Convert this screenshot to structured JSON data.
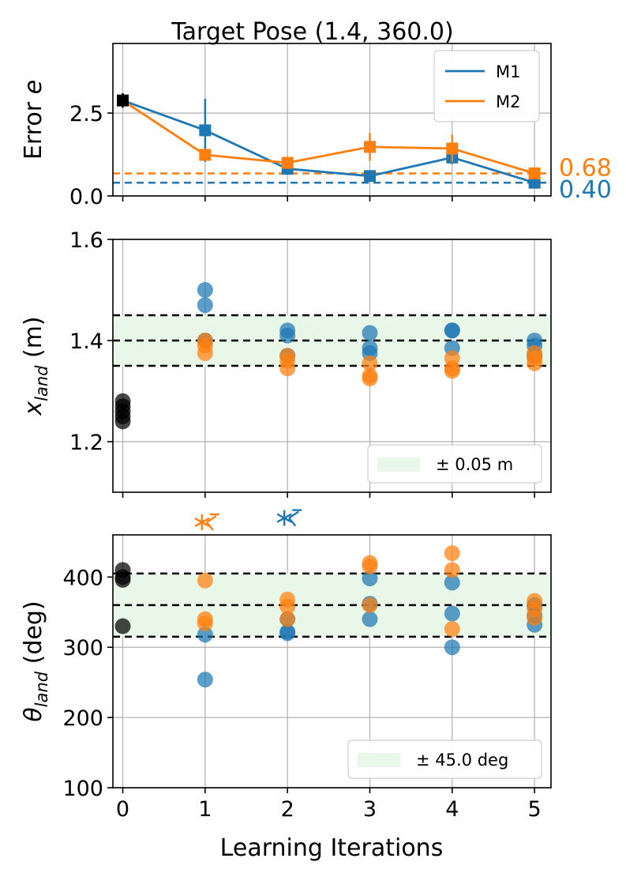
{
  "colors": {
    "m1": "#1f77b4",
    "m2": "#ff7f0e",
    "init": "#000000",
    "band": "#e9f7e9"
  },
  "chart_data": {
    "type": "composite",
    "title": "Target Pose (1.4, 360.0)",
    "xlabel": "Learning Iterations",
    "x_ticks": [
      "0",
      "1",
      "2",
      "3",
      "4",
      "5"
    ],
    "x_range": [
      -0.12,
      5.2
    ],
    "panels": [
      {
        "id": "error",
        "type": "line",
        "ylabel": "Error e",
        "ylim": [
          0,
          4.6
        ],
        "y_ticks": [
          "0.0",
          "2.5"
        ],
        "y_tick_values": [
          0.0,
          2.5
        ],
        "legend_position": "upper right",
        "initial": {
          "x": 0,
          "y": 2.88,
          "err": 0.22
        },
        "series": [
          {
            "name": "M1",
            "color": "#1f77b4",
            "x": [
              0,
              1,
              2,
              3,
              4,
              5
            ],
            "y": [
              2.88,
              1.98,
              0.82,
              0.6,
              1.16,
              0.4
            ],
            "err": [
              0.2,
              0.95,
              0.18,
              0.12,
              0.2,
              0.04
            ],
            "ref": 0.4,
            "ref_label": "0.40"
          },
          {
            "name": "M2",
            "color": "#ff7f0e",
            "x": [
              0,
              1,
              2,
              3,
              4,
              5
            ],
            "y": [
              2.88,
              1.24,
              1.0,
              1.48,
              1.43,
              0.68
            ],
            "err": [
              0.2,
              0.18,
              0.15,
              0.42,
              0.42,
              0.05
            ],
            "ref": 0.68,
            "ref_label": "0.68"
          }
        ]
      },
      {
        "id": "xland",
        "type": "scatter",
        "ylabel": "x_land (m)",
        "ylim": [
          1.1,
          1.6
        ],
        "y_ticks": [
          "1.2",
          "1.4",
          "1.6"
        ],
        "y_tick_values": [
          1.2,
          1.4,
          1.6
        ],
        "target": 1.4,
        "tolerance": 0.05,
        "legend": "± 0.05 m",
        "initial": [
          1.28,
          1.27,
          1.26,
          1.25,
          1.24
        ],
        "M1": [
          [
            1,
            1.5
          ],
          [
            1,
            1.47
          ],
          [
            1,
            1.4
          ],
          [
            2,
            1.42
          ],
          [
            2,
            1.41
          ],
          [
            2,
            1.37
          ],
          [
            3,
            1.415
          ],
          [
            3,
            1.385
          ],
          [
            3,
            1.375
          ],
          [
            4,
            1.42
          ],
          [
            4,
            1.42
          ],
          [
            4,
            1.385
          ],
          [
            5,
            1.4
          ],
          [
            5,
            1.39
          ],
          [
            5,
            1.37
          ]
        ],
        "M2": [
          [
            1,
            1.4
          ],
          [
            1,
            1.39
          ],
          [
            1,
            1.375
          ],
          [
            2,
            1.37
          ],
          [
            2,
            1.36
          ],
          [
            2,
            1.345
          ],
          [
            3,
            1.355
          ],
          [
            3,
            1.33
          ],
          [
            3,
            1.325
          ],
          [
            4,
            1.365
          ],
          [
            4,
            1.345
          ],
          [
            4,
            1.34
          ],
          [
            5,
            1.375
          ],
          [
            5,
            1.365
          ],
          [
            5,
            1.355
          ]
        ]
      },
      {
        "id": "theta",
        "type": "scatter",
        "ylabel": "θ_land (deg)",
        "ylim": [
          100,
          460
        ],
        "y_ticks": [
          "100",
          "200",
          "300",
          "400"
        ],
        "y_tick_values": [
          100,
          200,
          300,
          400
        ],
        "target": 360.0,
        "tolerance": 45.0,
        "legend": "± 45.0 deg",
        "initial": [
          410,
          400,
          396,
          330
        ],
        "M1": [
          [
            1,
            318
          ],
          [
            1,
            254
          ],
          [
            2,
            340
          ],
          [
            2,
            322
          ],
          [
            2,
            320
          ],
          [
            3,
            398
          ],
          [
            3,
            362
          ],
          [
            3,
            340
          ],
          [
            4,
            392
          ],
          [
            4,
            348
          ],
          [
            4,
            300
          ],
          [
            5,
            360
          ],
          [
            5,
            345
          ],
          [
            5,
            332
          ]
        ],
        "M2": [
          [
            1,
            395
          ],
          [
            1,
            340
          ],
          [
            1,
            334
          ],
          [
            2,
            368
          ],
          [
            2,
            358
          ],
          [
            2,
            340
          ],
          [
            3,
            420
          ],
          [
            3,
            415
          ],
          [
            3,
            360
          ],
          [
            4,
            434
          ],
          [
            4,
            410
          ],
          [
            4,
            326
          ],
          [
            5,
            366
          ],
          [
            5,
            355
          ],
          [
            5,
            342
          ]
        ],
        "outliers": [
          {
            "series": "M2",
            "x": 1,
            "y": 478
          },
          {
            "series": "M1",
            "x": 2,
            "y": 484
          }
        ]
      }
    ]
  }
}
